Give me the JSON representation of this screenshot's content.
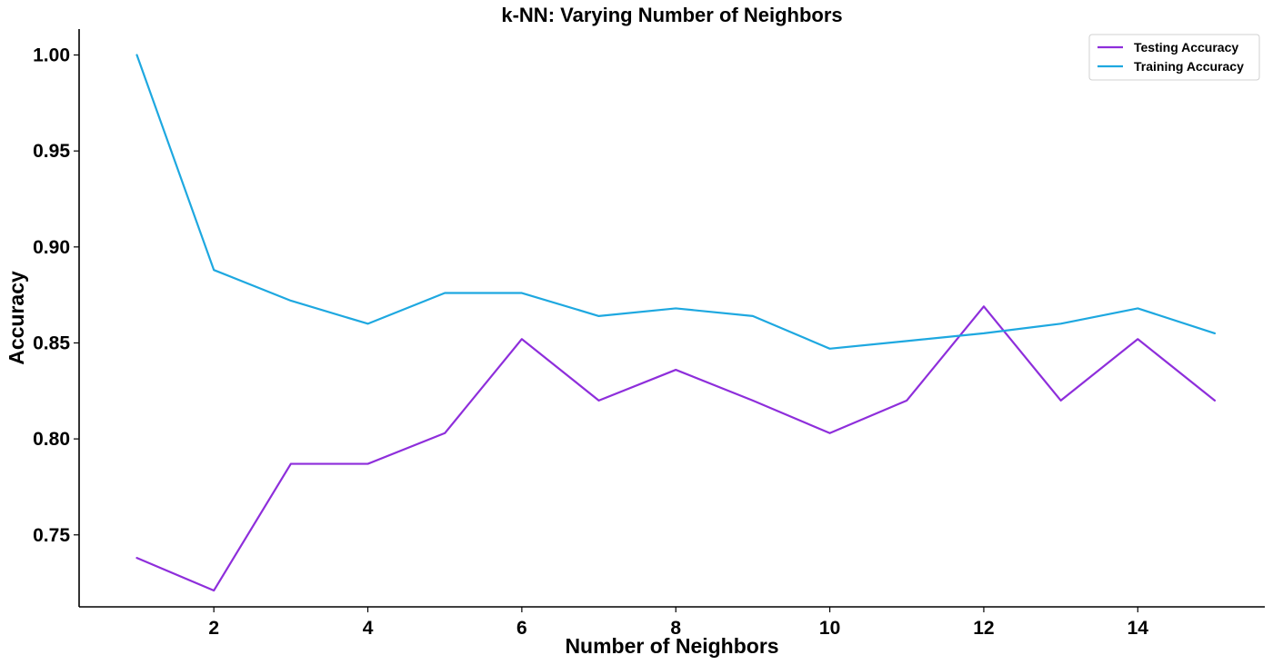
{
  "chart_data": {
    "type": "line",
    "title": "k-NN: Varying Number of Neighbors",
    "xlabel": "Number of Neighbors",
    "ylabel": "Accuracy",
    "x": [
      1,
      2,
      3,
      4,
      5,
      6,
      7,
      8,
      9,
      10,
      11,
      12,
      13,
      14,
      15
    ],
    "xlim": [
      0.25,
      15.65
    ],
    "ylim": [
      0.7125,
      1.0135
    ],
    "xticks": [
      2,
      4,
      6,
      8,
      10,
      12,
      14
    ],
    "xtick_labels": [
      "2",
      "4",
      "6",
      "8",
      "10",
      "12",
      "14"
    ],
    "yticks": [
      0.75,
      0.8,
      0.85,
      0.9,
      0.95,
      1.0
    ],
    "ytick_labels": [
      "0.75",
      "0.80",
      "0.85",
      "0.90",
      "0.95",
      "1.00"
    ],
    "grid": false,
    "legend_position": "top-right",
    "series": [
      {
        "name": "Testing Accuracy",
        "color": "#8E2EDB",
        "values": [
          0.738,
          0.721,
          0.787,
          0.787,
          0.803,
          0.852,
          0.82,
          0.836,
          0.82,
          0.803,
          0.82,
          0.869,
          0.82,
          0.852,
          0.82
        ]
      },
      {
        "name": "Training Accuracy",
        "color": "#1EA8E0",
        "values": [
          1.0,
          0.888,
          0.872,
          0.86,
          0.876,
          0.876,
          0.864,
          0.868,
          0.864,
          0.847,
          0.851,
          0.855,
          0.86,
          0.868,
          0.855
        ]
      }
    ]
  }
}
